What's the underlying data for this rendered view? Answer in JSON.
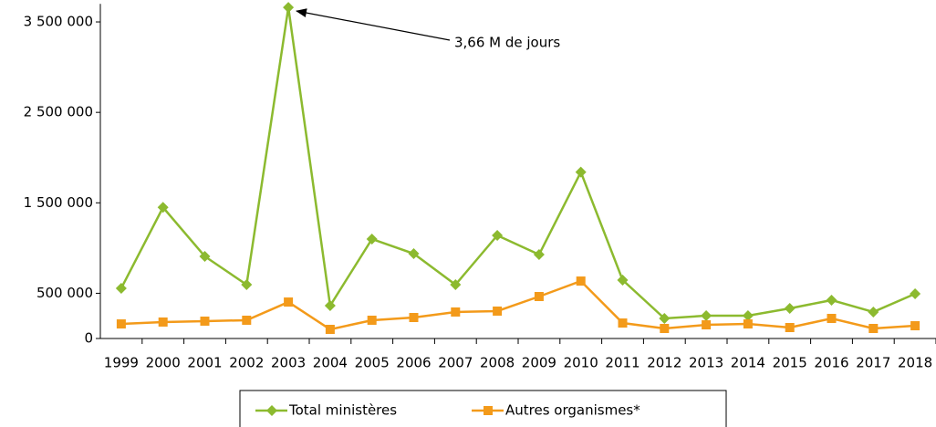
{
  "chart_data": {
    "type": "line",
    "categories": [
      "1999",
      "2000",
      "2001",
      "2002",
      "2003",
      "2004",
      "2005",
      "2006",
      "2007",
      "2008",
      "2009",
      "2010",
      "2011",
      "2012",
      "2013",
      "2014",
      "2015",
      "2016",
      "2017",
      "2018"
    ],
    "series": [
      {
        "name": "Total ministères",
        "color": "#8cba2f",
        "marker": "diamond",
        "values": [
          555000,
          1450000,
          908000,
          595000,
          3660000,
          363000,
          1100000,
          938000,
          595000,
          1140000,
          928000,
          1840000,
          646000,
          222000,
          252000,
          252000,
          333000,
          424000,
          293000,
          494000
        ]
      },
      {
        "name": "Autres organismes*",
        "color": "#f39a1a",
        "marker": "square",
        "values": [
          161000,
          182000,
          192000,
          202000,
          403000,
          101000,
          202000,
          232000,
          293000,
          303000,
          464000,
          635000,
          171000,
          111000,
          151000,
          161000,
          121000,
          222000,
          111000,
          141000
        ]
      }
    ],
    "ylim": [
      0,
      3700000
    ],
    "yticks": [
      0,
      {
        "value": 500000,
        "label": "500 000"
      },
      {
        "value": 1500000,
        "label": "1 500 000"
      },
      {
        "value": 2500000,
        "label": "2 500 000"
      },
      {
        "value": 3500000,
        "label": "3 500 000"
      }
    ],
    "annotations": [
      {
        "text": "3,66 M de jours"
      }
    ],
    "legend": "bottom"
  }
}
